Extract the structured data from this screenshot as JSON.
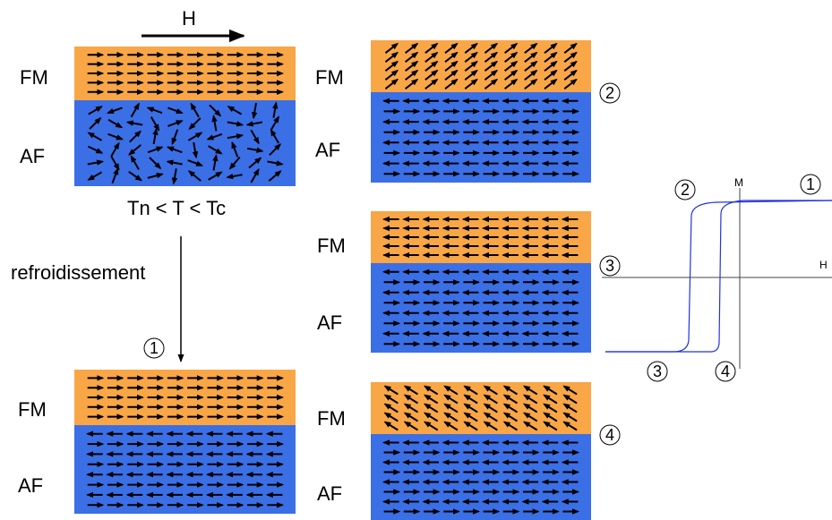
{
  "colors": {
    "fm_layer": "#F9A647",
    "af_layer": "#3B6FE6",
    "arrow": "#000000",
    "loop": "#2233DD",
    "axis": "#444444"
  },
  "field_label": "H",
  "labels": {
    "fm": "FM",
    "af": "AF"
  },
  "condition": "Tn < T < Tc",
  "process": "refroidissement",
  "states": [
    "1",
    "2",
    "3",
    "4"
  ],
  "loop_axes": {
    "m": "M",
    "h": "H"
  },
  "panels": [
    {
      "id": "initial",
      "fm_rows": 5,
      "af_rows": 6,
      "cols": 10,
      "fm_orientation": "right",
      "af_orientation": "random"
    },
    {
      "id": "state-1",
      "fm_rows": 5,
      "af_rows": 8,
      "cols": 10,
      "fm_orientation": "right",
      "af_orientation": "alternating"
    },
    {
      "id": "state-2",
      "fm_rows": 5,
      "af_rows": 8,
      "cols": 10,
      "fm_orientation": "tilted-up-right",
      "af_orientation": "alternating"
    },
    {
      "id": "state-3",
      "fm_rows": 5,
      "af_rows": 8,
      "cols": 10,
      "fm_orientation": "left",
      "af_orientation": "alternating"
    },
    {
      "id": "state-4",
      "fm_rows": 5,
      "af_rows": 8,
      "cols": 10,
      "fm_orientation": "tilted-up-left",
      "af_orientation": "alternating"
    }
  ]
}
